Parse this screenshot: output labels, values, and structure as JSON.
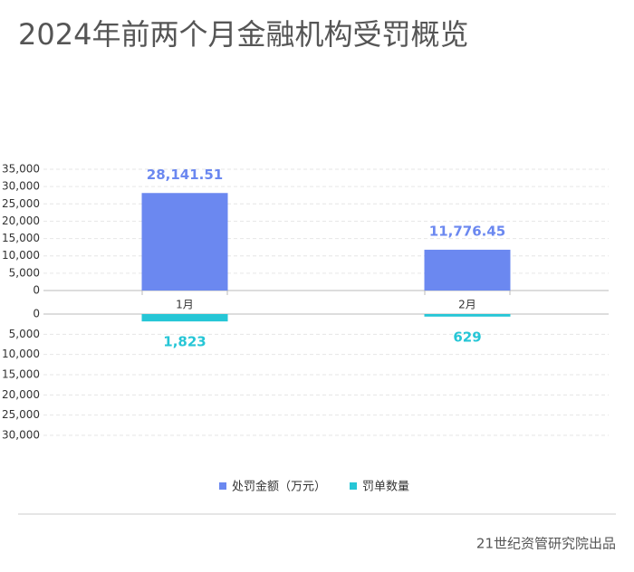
{
  "title": "2024年前两个月金融机构受罚概览",
  "footer": "21世纪资管研究院出品",
  "chart_data": [
    {
      "type": "bar",
      "categories": [
        "1月",
        "2月"
      ],
      "series": [
        {
          "name": "处罚金额（万元）",
          "color": "#6b88f0",
          "values": [
            28141.51,
            11776.45
          ],
          "value_labels": [
            "28,141.51",
            "11,776.45"
          ]
        }
      ],
      "ylim": [
        0,
        35000
      ],
      "yticks": [
        0,
        {
          "value": 5000,
          "label": "5,000"
        },
        {
          "value": 10000,
          "label": "10,000"
        },
        {
          "value": 15000,
          "label": "15,000"
        },
        {
          "value": 20000,
          "label": "20,000"
        },
        {
          "value": 25000,
          "label": "25,000"
        },
        {
          "value": 30000,
          "label": "30,000"
        },
        {
          "value": 35000,
          "label": "35,000"
        }
      ],
      "grid": true,
      "legend": "bottom"
    },
    {
      "type": "bar",
      "inverted": true,
      "series": [
        {
          "name": "罚单数量",
          "color": "#26c6d6",
          "values": [
            1823,
            629
          ],
          "value_labels": [
            "1,823",
            "629"
          ]
        }
      ],
      "ylim": [
        0,
        30000
      ],
      "yticks": [
        0,
        {
          "value": 5000,
          "label": "5,000"
        },
        {
          "value": 10000,
          "label": "10,000"
        },
        {
          "value": 15000,
          "label": "15,000"
        },
        {
          "value": 20000,
          "label": "20,000"
        },
        {
          "value": 25000,
          "label": "25,000"
        },
        {
          "value": 30000,
          "label": "30,000"
        }
      ],
      "grid": true,
      "legend": "bottom"
    }
  ]
}
